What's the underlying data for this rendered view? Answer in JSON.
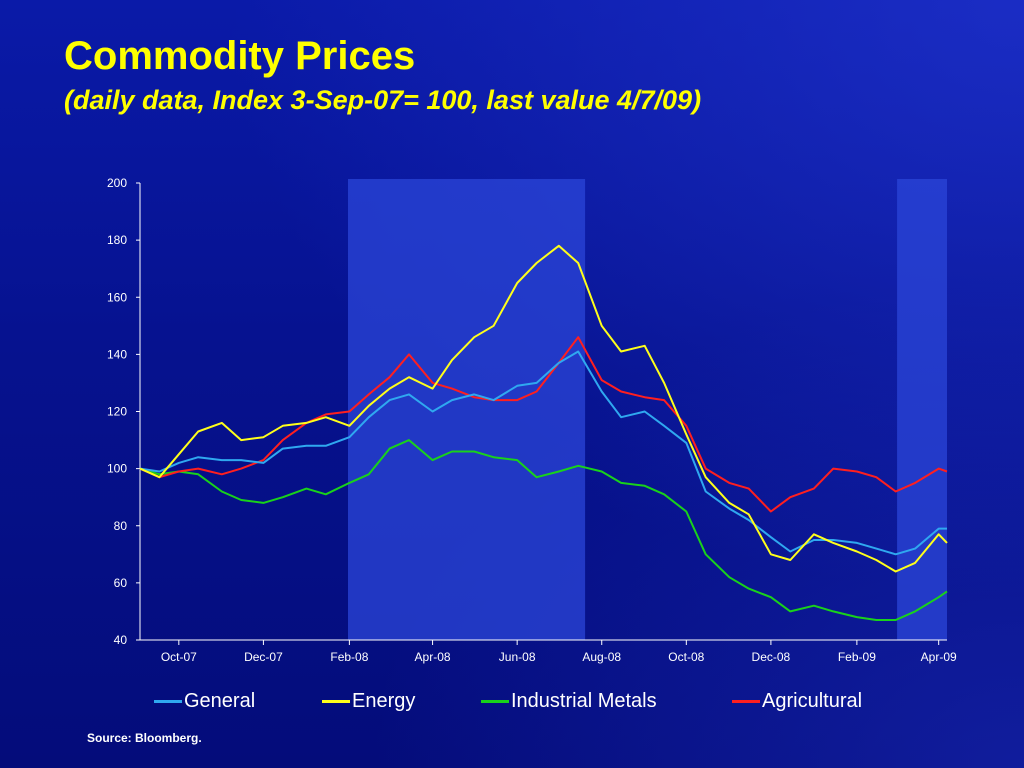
{
  "slide": {
    "title": "Commodity Prices",
    "subtitle": "(daily data, Index 3-Sep-07= 100, last value 4/7/09)",
    "source": "Source: Bloomberg."
  },
  "colors": {
    "General": "#2fa8f0",
    "Energy": "#ffff1a",
    "Industrial Metals": "#19d21b",
    "Agricultural": "#ff1f1f",
    "shade": "#2b45d8"
  },
  "chart_data": {
    "type": "line",
    "title": "Commodity Prices",
    "subtitle": "(daily data, Index 3-Sep-07= 100, last value 4/7/09)",
    "xlabel": "",
    "ylabel": "",
    "ylim": [
      40,
      200
    ],
    "yticks": [
      40,
      60,
      80,
      100,
      120,
      140,
      160,
      180,
      200
    ],
    "xlim": [
      "2007-09-03",
      "2009-04-07"
    ],
    "xticks": [
      {
        "date": "2007-10-01",
        "label": "Oct-07"
      },
      {
        "date": "2007-12-01",
        "label": "Dec-07"
      },
      {
        "date": "2008-02-01",
        "label": "Feb-08"
      },
      {
        "date": "2008-04-01",
        "label": "Apr-08"
      },
      {
        "date": "2008-06-01",
        "label": "Jun-08"
      },
      {
        "date": "2008-08-01",
        "label": "Aug-08"
      },
      {
        "date": "2008-10-01",
        "label": "Oct-08"
      },
      {
        "date": "2008-12-01",
        "label": "Dec-08"
      },
      {
        "date": "2009-02-01",
        "label": "Feb-09"
      },
      {
        "date": "2009-04-01",
        "label": "Apr-09"
      }
    ],
    "shaded_periods": [
      [
        "2008-01-31",
        "2008-07-20"
      ],
      [
        "2009-03-02",
        "2009-04-07"
      ]
    ],
    "grid": false,
    "legend": "bottom",
    "x": [
      "2007-09-03",
      "2007-09-17",
      "2007-10-01",
      "2007-10-15",
      "2007-11-01",
      "2007-11-15",
      "2007-12-01",
      "2007-12-15",
      "2008-01-01",
      "2008-01-15",
      "2008-02-01",
      "2008-02-15",
      "2008-03-01",
      "2008-03-15",
      "2008-04-01",
      "2008-04-15",
      "2008-05-01",
      "2008-05-15",
      "2008-06-01",
      "2008-06-15",
      "2008-07-01",
      "2008-07-15",
      "2008-08-01",
      "2008-08-15",
      "2008-09-01",
      "2008-09-15",
      "2008-10-01",
      "2008-10-15",
      "2008-11-01",
      "2008-11-15",
      "2008-12-01",
      "2008-12-15",
      "2009-01-01",
      "2009-01-15",
      "2009-02-01",
      "2009-02-15",
      "2009-03-01",
      "2009-03-15",
      "2009-04-01",
      "2009-04-07"
    ],
    "series": [
      {
        "name": "General",
        "values": [
          100,
          99,
          102,
          104,
          103,
          103,
          102,
          107,
          108,
          108,
          111,
          118,
          124,
          126,
          120,
          124,
          126,
          124,
          129,
          130,
          137,
          141,
          127,
          118,
          120,
          115,
          109,
          92,
          86,
          82,
          76,
          71,
          75,
          75,
          74,
          72,
          70,
          72,
          79,
          79
        ]
      },
      {
        "name": "Energy",
        "values": [
          100,
          97,
          105,
          113,
          116,
          110,
          111,
          115,
          116,
          118,
          115,
          122,
          128,
          132,
          128,
          138,
          146,
          150,
          165,
          172,
          178,
          172,
          150,
          141,
          143,
          130,
          112,
          97,
          88,
          84,
          70,
          68,
          77,
          74,
          71,
          68,
          64,
          67,
          77,
          74
        ]
      },
      {
        "name": "Industrial Metals",
        "values": [
          100,
          98,
          99,
          98,
          92,
          89,
          88,
          90,
          93,
          91,
          95,
          98,
          107,
          110,
          103,
          106,
          106,
          104,
          103,
          97,
          99,
          101,
          99,
          95,
          94,
          91,
          85,
          70,
          62,
          58,
          55,
          50,
          52,
          50,
          48,
          47,
          47,
          50,
          55,
          57
        ]
      },
      {
        "name": "Agricultural",
        "values": [
          100,
          97,
          99,
          100,
          98,
          100,
          103,
          110,
          116,
          119,
          120,
          126,
          132,
          140,
          130,
          128,
          125,
          124,
          124,
          127,
          137,
          146,
          131,
          127,
          125,
          124,
          115,
          100,
          95,
          93,
          85,
          90,
          93,
          100,
          99,
          97,
          92,
          95,
          100,
          99
        ]
      }
    ]
  }
}
